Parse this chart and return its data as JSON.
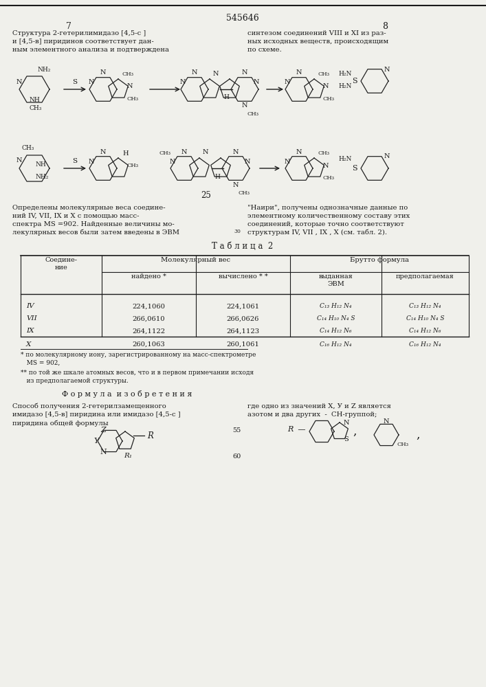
{
  "page_number": "545646",
  "left_col_num": "7",
  "right_col_num": "8",
  "bg_color": "#f0f0eb",
  "text_color": "#1a1a1a",
  "para1_left": "Структура 2-гетерилимидазо [4,5-с ]\nи [4,5-в] пиридинов соответствует дан-\nным элементного анализа и подтверждена",
  "para1_right": "синтезом соединений VIII и XI из раз-\nных исходных веществ, происходящим\nпо схеме.",
  "para2_left": "Определены молекулярные веса соедине-\nний IV, VII, IX и X с помощью масс-\nспектра МS =902. Найденные величины мо-\nлекулярных весов были затем введены в ЭВМ",
  "para2_left_sub": "30",
  "para2_right": "\"Наири\", получены однозначные данные по\nэлементному количественному составу этих\nсоединений, которые точно соответствуют\nструктурам IV, VII , IX , X (см. табл. 2).",
  "table_title": "Т а б л и ц а  2",
  "table_data": [
    [
      "IV",
      "224,1060",
      "224,1061",
      "C₁₃ H₁₂ N₄",
      "C₁₃ H₁₂ N₄"
    ],
    [
      "VII",
      "266,0610",
      "266,0626",
      "C₁₄ H₁₀ N₄ S",
      "C₁₄ H₁₀ N₄ S"
    ],
    [
      "IX",
      "264,1122",
      "264,1123",
      "C₁₄ H₁₂ N₆",
      "C₁₄ H₁₂ N₆"
    ],
    [
      "X",
      "260,1063",
      "260,1061",
      "C₁₆ H₁₂ N₄",
      "C₁₆ H₁₂ N₄"
    ]
  ],
  "footnote1": "* по молекулярному иону, зарегистрированному на масс-спектрометре\n   МS = 902,",
  "footnote2": "** по той же шкале атомных весов, что и в первом примечании исходя\n   из предполагаемой структуры.",
  "formula_title": "Ф о р м у л а  и з о б р е т е н и я",
  "formula_left": "Способ получения 2-гетерилзамещенного\nимидазо [4,5-в] пиридина или имидазо [4,5-с ]\nпиридина общей формулы",
  "formula_right": "где одно из значений X, У и Z является\nазотом и два других  -  СН-группой;",
  "label_55": "55",
  "label_60": "60",
  "chem_num_25": "25"
}
